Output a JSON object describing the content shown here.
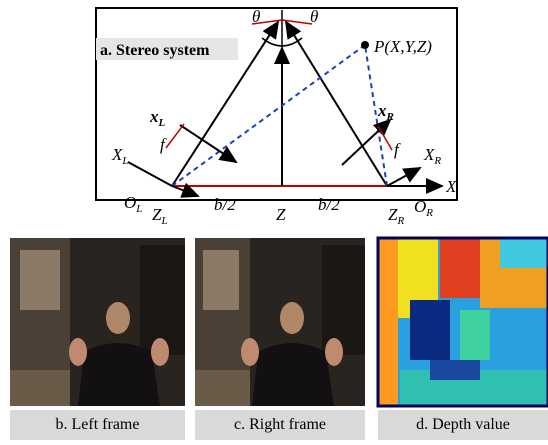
{
  "figure": {
    "panel_a": {
      "title": "a. Stereo system",
      "theta_left": "θ",
      "theta_right": "θ",
      "point": "P(X,Y,Z)",
      "x_axis": "X",
      "center_axis": "Z",
      "baseline_left": "b/2",
      "baseline_right": "b/2",
      "f_left": "f",
      "f_right": "f",
      "x_left": {
        "base": "x",
        "sub": "L"
      },
      "x_right": {
        "base": "x",
        "sub": "R"
      },
      "X_left": {
        "base": "X",
        "sub": "L"
      },
      "X_right": {
        "base": "X",
        "sub": "R"
      },
      "O_left": {
        "base": "O",
        "sub": "L"
      },
      "O_right": {
        "base": "O",
        "sub": "R"
      },
      "Z_left": {
        "base": "Z",
        "sub": "L"
      },
      "Z_right": {
        "base": "Z",
        "sub": "R"
      }
    },
    "captions": [
      "b. Left frame",
      "c. Right frame",
      "d. Depth value"
    ]
  }
}
